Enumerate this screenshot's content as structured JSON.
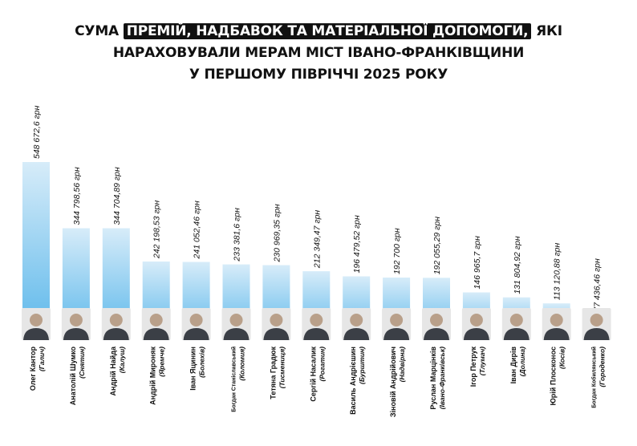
{
  "title": {
    "line1_pre": "СУМА ",
    "line1_highlight": "ПРЕМІЙ, НАДБАВОК ТА МАТЕРІАЛЬНОЇ ДОПОМОГИ,",
    "line1_post": " ЯКІ",
    "line2": "НАРАХОВУВАЛИ МЕРАМ МІСТ ІВАНО-ФРАНКІВЩИНИ",
    "line3": "У ПЕРШОМУ ПІВРІЧЧІ 2025 РОКУ"
  },
  "colors": {
    "bar_top": "#d7ecf9",
    "bar_bottom": "#58b6ea",
    "avatar_bg": "#e6e6e6",
    "text": "#111111"
  },
  "chart_data": {
    "type": "bar",
    "ylim": [
      0,
      600000
    ],
    "grid": false,
    "legend": "none",
    "categories": [
      {
        "name": "Олег Кантор",
        "city": "(Галич)",
        "value": 548672.6,
        "label": "548 672,6 грн"
      },
      {
        "name": "Анатолій Шумко",
        "city": "(Снятин)",
        "value": 344798.56,
        "label": "344 798,56 грн"
      },
      {
        "name": "Андрій Найда",
        "city": "(Калуш)",
        "value": 344704.89,
        "label": "344 704,89 грн"
      },
      {
        "name": "Андрій Мироняк",
        "city": "(Яремче)",
        "value": 242198.53,
        "label": "242 198,53 грн"
      },
      {
        "name": "Іван Яцинин",
        "city": "(Болехів)",
        "value": 241052.46,
        "label": "241 052,46 грн"
      },
      {
        "name": "Богдан Станіславський",
        "city": "(Коломия)",
        "value": 233381.6,
        "label": "233 381,6 грн"
      },
      {
        "name": "Тетяна Градюк",
        "city": "(Тисмениця)",
        "value": 230969.35,
        "label": "230 969,35 грн"
      },
      {
        "name": "Сергій Насалик",
        "city": "(Рогатин)",
        "value": 212349.47,
        "label": "212 349,47 грн"
      },
      {
        "name": "Василь Андрієшин",
        "city": "(Бурштин)",
        "value": 196479.52,
        "label": "196 479,52 грн"
      },
      {
        "name": "Зіновій Андрійович",
        "city": "(Надвірна)",
        "value": 192700,
        "label": "192 700 грн"
      },
      {
        "name": "Руслан Марцінків",
        "city": "(Івано-Франківськ)",
        "value": 192055.29,
        "label": "192 055,29 грн"
      },
      {
        "name": "Ігор Петрук",
        "city": "(Тлумач)",
        "value": 146965.7,
        "label": "146 965,7 грн"
      },
      {
        "name": "Іван Дирів",
        "city": "(Долина)",
        "value": 131804.92,
        "label": "131 804,92 грн"
      },
      {
        "name": "Юрій Плосконос",
        "city": "(Косів)",
        "value": 113120.88,
        "label": "113 120,88 грн"
      },
      {
        "name": "Богдан Кобилянський",
        "city": "(Городенко)",
        "value": 77436.46,
        "label": "77 436,46 грн"
      }
    ]
  }
}
